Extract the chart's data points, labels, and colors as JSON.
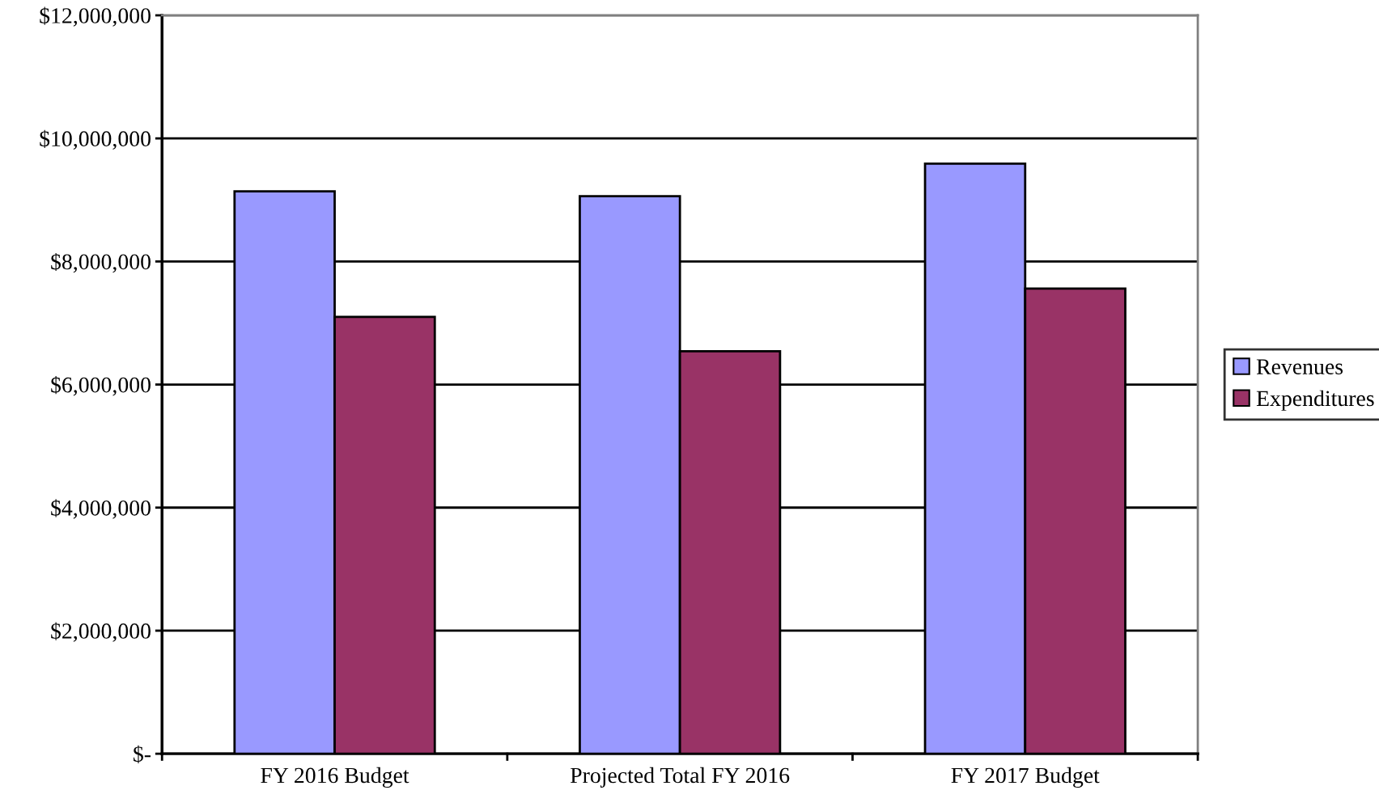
{
  "chart_data": {
    "type": "bar",
    "categories": [
      "FY 2016 Budget",
      "Projected Total FY 2016",
      "FY 2017 Budget"
    ],
    "series": [
      {
        "name": "Revenues",
        "color": "#9999ff",
        "values": [
          9140000,
          9060000,
          9590000
        ]
      },
      {
        "name": "Expenditures",
        "color": "#993366",
        "values": [
          7100000,
          6540000,
          7560000
        ]
      }
    ],
    "ylim": [
      0,
      12000000
    ],
    "yticks": [
      {
        "value": 0,
        "label": "$-"
      },
      {
        "value": 2000000,
        "label": "$2,000,000"
      },
      {
        "value": 4000000,
        "label": "$4,000,000"
      },
      {
        "value": 6000000,
        "label": "$6,000,000"
      },
      {
        "value": 8000000,
        "label": "$8,000,000"
      },
      {
        "value": 10000000,
        "label": "$10,000,000"
      },
      {
        "value": 12000000,
        "label": "$12,000,000"
      }
    ],
    "grid": "y",
    "legend": "right"
  }
}
